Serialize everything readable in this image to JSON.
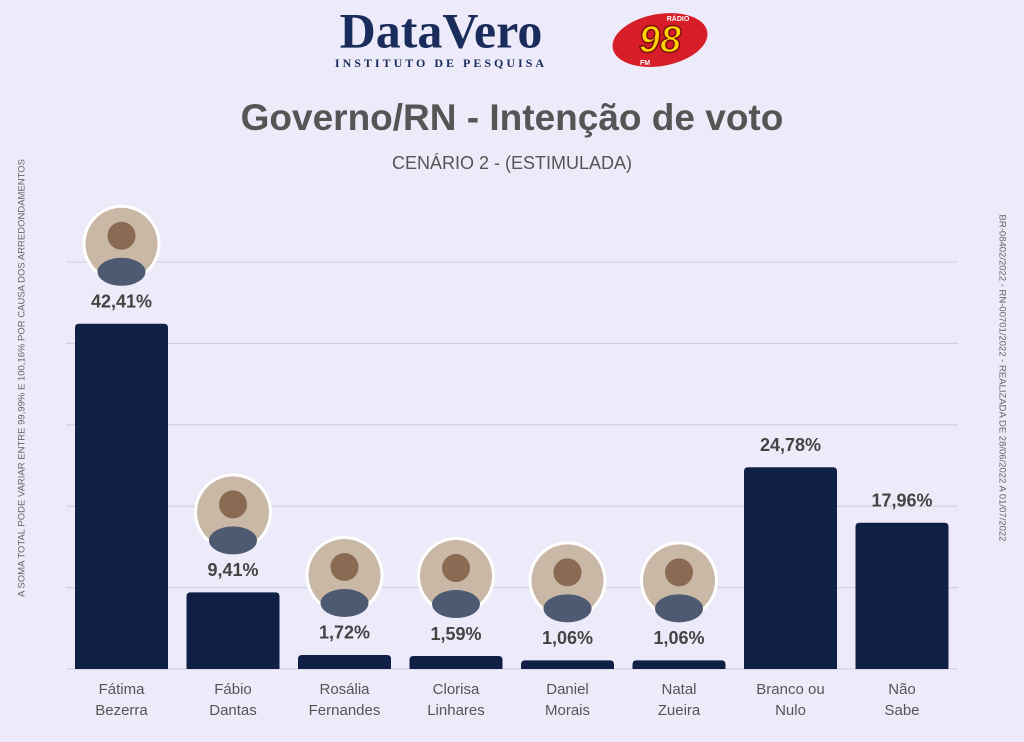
{
  "logos": {
    "brand": "DataVero",
    "brand_tagline": "INSTITUTO DE PESQUISA",
    "radio_name": "RÁDIO",
    "radio_number": "98",
    "radio_band": "FM"
  },
  "chart_data": {
    "type": "bar",
    "title": "Governo/RN - Intenção de voto",
    "subtitle": "CENÁRIO 2 - (ESTIMULADA)",
    "notes": {
      "left": "A SOMA TOTAL PODE VARIAR ENTRE 99,99% E 100,16% POR CAUSA DOS ARREDONDAMENTOS",
      "right": "BR-08402/2022 - RN-00701/2022 - REALIZADA DE 28/06/2022 A 01/07/2022"
    },
    "categories": [
      [
        "Fátima",
        "Bezerra"
      ],
      [
        "Fábio",
        "Dantas"
      ],
      [
        "Rosália",
        "Fernandes"
      ],
      [
        "Clorisa",
        "Linhares"
      ],
      [
        "Daniel",
        "Morais"
      ],
      [
        "Natal",
        "Zueira"
      ],
      [
        "Branco ou",
        "Nulo"
      ],
      [
        "Não",
        "Sabe"
      ]
    ],
    "values": [
      42.41,
      9.41,
      1.72,
      1.59,
      1.06,
      1.06,
      24.78,
      17.96
    ],
    "value_labels": [
      "42,41%",
      "9,41%",
      "1,72%",
      "1,59%",
      "1,06%",
      "1,06%",
      "24,78%",
      "17,96%"
    ],
    "color": "#0f1f45",
    "ylim": [
      0,
      50
    ],
    "yticks": [
      0,
      10,
      20,
      30,
      40,
      50
    ],
    "grid": true
  }
}
